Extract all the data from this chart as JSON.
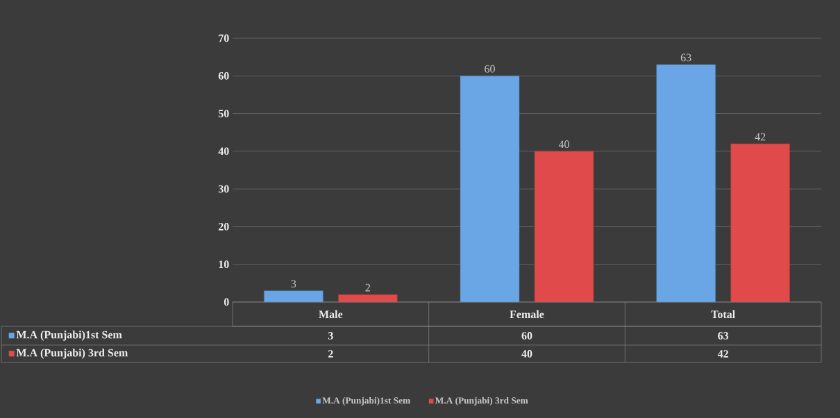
{
  "chart_data": {
    "type": "bar",
    "categories": [
      "Male",
      "Female",
      "Total"
    ],
    "series": [
      {
        "name": "M.A (Punjabi)1st Sem",
        "color": "#6aa6e6",
        "values": [
          3,
          60,
          63
        ],
        "value_labels": [
          "3",
          "60",
          "63"
        ]
      },
      {
        "name": "M.A (Punjabi) 3rd Sem",
        "color": "#e04a4a",
        "values": [
          2,
          40,
          42
        ],
        "value_labels": [
          "2",
          "40",
          "42"
        ]
      }
    ],
    "ylim": [
      0,
      70
    ],
    "yticks": [
      0,
      10,
      20,
      30,
      40,
      50,
      60,
      70
    ],
    "grid": "y",
    "data_labels": true,
    "legend": "bottom"
  }
}
